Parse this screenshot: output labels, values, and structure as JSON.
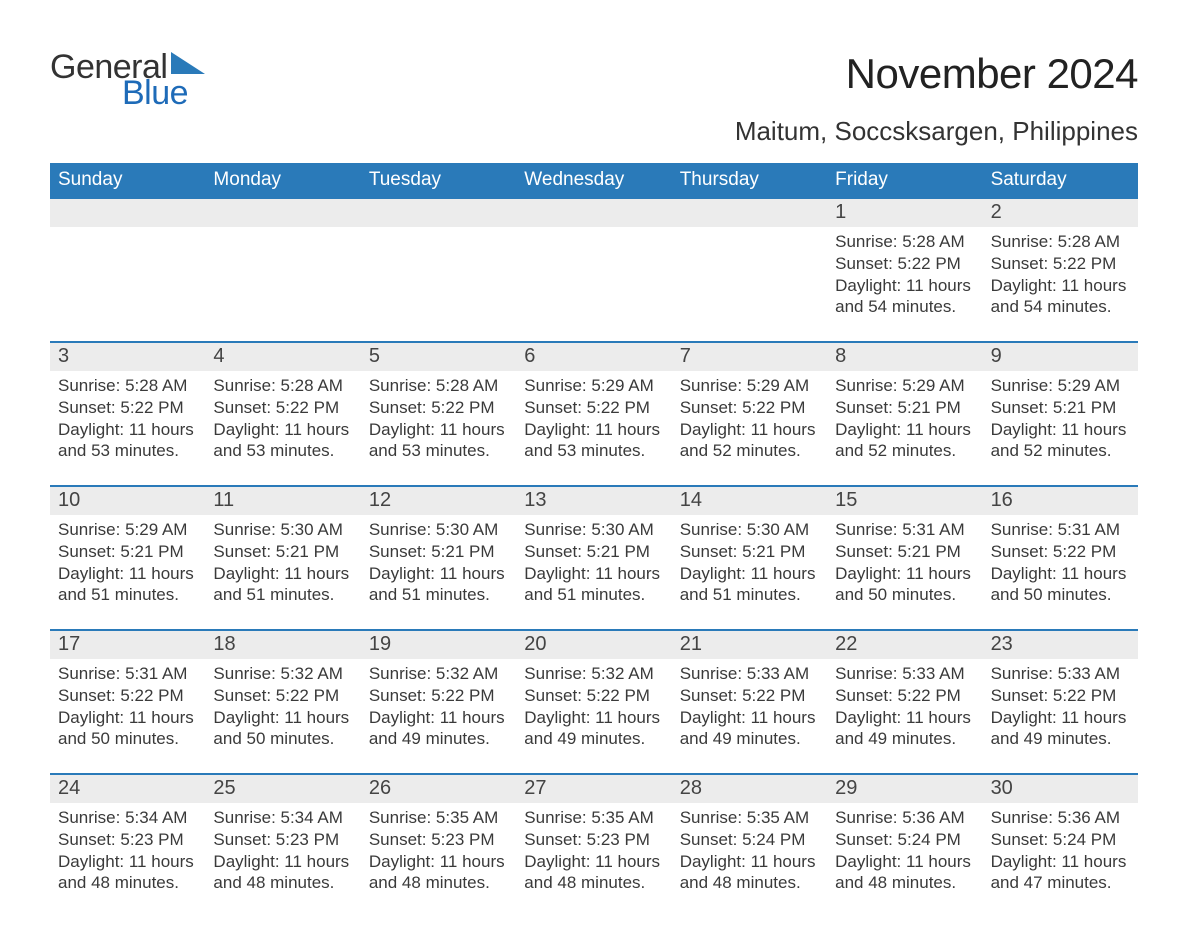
{
  "logo": {
    "word1": "General",
    "word2": "Blue",
    "triangle_color": "#2a7ab9"
  },
  "header": {
    "month_title": "November 2024",
    "location": "Maitum, Soccsksargen, Philippines"
  },
  "colors": {
    "header_blue": "#2a7ab9",
    "accent_blue": "#1e6bb8",
    "row_grey": "#ececec",
    "background": "#ffffff",
    "text_dark": "#333333"
  },
  "weekdays": [
    "Sunday",
    "Monday",
    "Tuesday",
    "Wednesday",
    "Thursday",
    "Friday",
    "Saturday"
  ],
  "weeks": [
    {
      "days": [
        {
          "n": "",
          "sunrise": "",
          "sunset": "",
          "daylight1": "",
          "daylight2": ""
        },
        {
          "n": "",
          "sunrise": "",
          "sunset": "",
          "daylight1": "",
          "daylight2": ""
        },
        {
          "n": "",
          "sunrise": "",
          "sunset": "",
          "daylight1": "",
          "daylight2": ""
        },
        {
          "n": "",
          "sunrise": "",
          "sunset": "",
          "daylight1": "",
          "daylight2": ""
        },
        {
          "n": "",
          "sunrise": "",
          "sunset": "",
          "daylight1": "",
          "daylight2": ""
        },
        {
          "n": "1",
          "sunrise": "Sunrise: 5:28 AM",
          "sunset": "Sunset: 5:22 PM",
          "daylight1": "Daylight: 11 hours",
          "daylight2": "and 54 minutes."
        },
        {
          "n": "2",
          "sunrise": "Sunrise: 5:28 AM",
          "sunset": "Sunset: 5:22 PM",
          "daylight1": "Daylight: 11 hours",
          "daylight2": "and 54 minutes."
        }
      ]
    },
    {
      "days": [
        {
          "n": "3",
          "sunrise": "Sunrise: 5:28 AM",
          "sunset": "Sunset: 5:22 PM",
          "daylight1": "Daylight: 11 hours",
          "daylight2": "and 53 minutes."
        },
        {
          "n": "4",
          "sunrise": "Sunrise: 5:28 AM",
          "sunset": "Sunset: 5:22 PM",
          "daylight1": "Daylight: 11 hours",
          "daylight2": "and 53 minutes."
        },
        {
          "n": "5",
          "sunrise": "Sunrise: 5:28 AM",
          "sunset": "Sunset: 5:22 PM",
          "daylight1": "Daylight: 11 hours",
          "daylight2": "and 53 minutes."
        },
        {
          "n": "6",
          "sunrise": "Sunrise: 5:29 AM",
          "sunset": "Sunset: 5:22 PM",
          "daylight1": "Daylight: 11 hours",
          "daylight2": "and 53 minutes."
        },
        {
          "n": "7",
          "sunrise": "Sunrise: 5:29 AM",
          "sunset": "Sunset: 5:22 PM",
          "daylight1": "Daylight: 11 hours",
          "daylight2": "and 52 minutes."
        },
        {
          "n": "8",
          "sunrise": "Sunrise: 5:29 AM",
          "sunset": "Sunset: 5:21 PM",
          "daylight1": "Daylight: 11 hours",
          "daylight2": "and 52 minutes."
        },
        {
          "n": "9",
          "sunrise": "Sunrise: 5:29 AM",
          "sunset": "Sunset: 5:21 PM",
          "daylight1": "Daylight: 11 hours",
          "daylight2": "and 52 minutes."
        }
      ]
    },
    {
      "days": [
        {
          "n": "10",
          "sunrise": "Sunrise: 5:29 AM",
          "sunset": "Sunset: 5:21 PM",
          "daylight1": "Daylight: 11 hours",
          "daylight2": "and 51 minutes."
        },
        {
          "n": "11",
          "sunrise": "Sunrise: 5:30 AM",
          "sunset": "Sunset: 5:21 PM",
          "daylight1": "Daylight: 11 hours",
          "daylight2": "and 51 minutes."
        },
        {
          "n": "12",
          "sunrise": "Sunrise: 5:30 AM",
          "sunset": "Sunset: 5:21 PM",
          "daylight1": "Daylight: 11 hours",
          "daylight2": "and 51 minutes."
        },
        {
          "n": "13",
          "sunrise": "Sunrise: 5:30 AM",
          "sunset": "Sunset: 5:21 PM",
          "daylight1": "Daylight: 11 hours",
          "daylight2": "and 51 minutes."
        },
        {
          "n": "14",
          "sunrise": "Sunrise: 5:30 AM",
          "sunset": "Sunset: 5:21 PM",
          "daylight1": "Daylight: 11 hours",
          "daylight2": "and 51 minutes."
        },
        {
          "n": "15",
          "sunrise": "Sunrise: 5:31 AM",
          "sunset": "Sunset: 5:21 PM",
          "daylight1": "Daylight: 11 hours",
          "daylight2": "and 50 minutes."
        },
        {
          "n": "16",
          "sunrise": "Sunrise: 5:31 AM",
          "sunset": "Sunset: 5:22 PM",
          "daylight1": "Daylight: 11 hours",
          "daylight2": "and 50 minutes."
        }
      ]
    },
    {
      "days": [
        {
          "n": "17",
          "sunrise": "Sunrise: 5:31 AM",
          "sunset": "Sunset: 5:22 PM",
          "daylight1": "Daylight: 11 hours",
          "daylight2": "and 50 minutes."
        },
        {
          "n": "18",
          "sunrise": "Sunrise: 5:32 AM",
          "sunset": "Sunset: 5:22 PM",
          "daylight1": "Daylight: 11 hours",
          "daylight2": "and 50 minutes."
        },
        {
          "n": "19",
          "sunrise": "Sunrise: 5:32 AM",
          "sunset": "Sunset: 5:22 PM",
          "daylight1": "Daylight: 11 hours",
          "daylight2": "and 49 minutes."
        },
        {
          "n": "20",
          "sunrise": "Sunrise: 5:32 AM",
          "sunset": "Sunset: 5:22 PM",
          "daylight1": "Daylight: 11 hours",
          "daylight2": "and 49 minutes."
        },
        {
          "n": "21",
          "sunrise": "Sunrise: 5:33 AM",
          "sunset": "Sunset: 5:22 PM",
          "daylight1": "Daylight: 11 hours",
          "daylight2": "and 49 minutes."
        },
        {
          "n": "22",
          "sunrise": "Sunrise: 5:33 AM",
          "sunset": "Sunset: 5:22 PM",
          "daylight1": "Daylight: 11 hours",
          "daylight2": "and 49 minutes."
        },
        {
          "n": "23",
          "sunrise": "Sunrise: 5:33 AM",
          "sunset": "Sunset: 5:22 PM",
          "daylight1": "Daylight: 11 hours",
          "daylight2": "and 49 minutes."
        }
      ]
    },
    {
      "days": [
        {
          "n": "24",
          "sunrise": "Sunrise: 5:34 AM",
          "sunset": "Sunset: 5:23 PM",
          "daylight1": "Daylight: 11 hours",
          "daylight2": "and 48 minutes."
        },
        {
          "n": "25",
          "sunrise": "Sunrise: 5:34 AM",
          "sunset": "Sunset: 5:23 PM",
          "daylight1": "Daylight: 11 hours",
          "daylight2": "and 48 minutes."
        },
        {
          "n": "26",
          "sunrise": "Sunrise: 5:35 AM",
          "sunset": "Sunset: 5:23 PM",
          "daylight1": "Daylight: 11 hours",
          "daylight2": "and 48 minutes."
        },
        {
          "n": "27",
          "sunrise": "Sunrise: 5:35 AM",
          "sunset": "Sunset: 5:23 PM",
          "daylight1": "Daylight: 11 hours",
          "daylight2": "and 48 minutes."
        },
        {
          "n": "28",
          "sunrise": "Sunrise: 5:35 AM",
          "sunset": "Sunset: 5:24 PM",
          "daylight1": "Daylight: 11 hours",
          "daylight2": "and 48 minutes."
        },
        {
          "n": "29",
          "sunrise": "Sunrise: 5:36 AM",
          "sunset": "Sunset: 5:24 PM",
          "daylight1": "Daylight: 11 hours",
          "daylight2": "and 48 minutes."
        },
        {
          "n": "30",
          "sunrise": "Sunrise: 5:36 AM",
          "sunset": "Sunset: 5:24 PM",
          "daylight1": "Daylight: 11 hours",
          "daylight2": "and 47 minutes."
        }
      ]
    }
  ]
}
